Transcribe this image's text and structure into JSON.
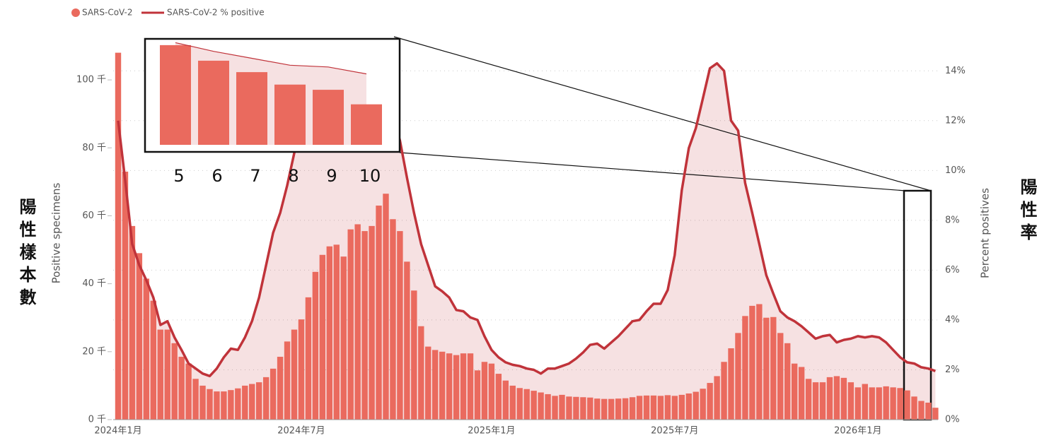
{
  "chart_data": {
    "type": "bar-line",
    "legend_position": "top-left",
    "y_title": "Positive specimens",
    "y2_title": "Percent positives",
    "y_note": "陽性樣本數",
    "y2_note": "陽性率",
    "categories": [
      "2024年1月",
      null,
      null,
      null,
      null,
      null,
      null,
      null,
      null,
      null,
      null,
      null,
      null,
      null,
      null,
      null,
      null,
      null,
      null,
      null,
      null,
      null,
      null,
      null,
      null,
      null,
      "2024年7月",
      null,
      null,
      null,
      null,
      null,
      null,
      null,
      null,
      null,
      null,
      null,
      null,
      null,
      null,
      null,
      null,
      null,
      null,
      null,
      null,
      null,
      null,
      null,
      null,
      null,
      null,
      "2025年1月",
      null,
      null,
      null,
      null,
      null,
      null,
      null,
      null,
      null,
      null,
      null,
      null,
      null,
      null,
      null,
      null,
      null,
      null,
      null,
      null,
      null,
      null,
      null,
      null,
      null,
      "2025年7月",
      null,
      null,
      null,
      null,
      null,
      null,
      null,
      null,
      null,
      null,
      null,
      null,
      null,
      null,
      null,
      null,
      null,
      null,
      null,
      null,
      null,
      null,
      null,
      null,
      null,
      "2026年1月",
      null,
      null,
      null,
      null,
      null,
      null,
      null,
      null,
      null,
      null,
      null
    ],
    "series": [
      {
        "name": "SARS-CoV-2",
        "color": "#ea6a5e",
        "values": [
          108,
          73,
          57,
          49,
          41.5,
          35,
          26.5,
          26.5,
          22.5,
          18.5,
          16.5,
          12,
          10,
          9,
          8.3,
          8.3,
          8.7,
          9.2,
          10,
          10.5,
          11,
          12.5,
          15,
          18.5,
          23,
          26.5,
          29.5,
          36,
          43.5,
          48.5,
          51,
          51.5,
          48,
          56,
          57.5,
          55.5,
          57,
          63,
          66.5,
          59,
          55.5,
          46.5,
          38,
          27.5,
          21.5,
          20.5,
          20,
          19.5,
          19,
          19.5,
          19.5,
          14.5,
          17,
          16.5,
          13.5,
          11.5,
          10,
          9.3,
          9,
          8.5,
          8,
          7.5,
          7,
          7.3,
          6.8,
          6.7,
          6.6,
          6.5,
          6.2,
          6.1,
          6.1,
          6.2,
          6.3,
          6.6,
          7,
          7.1,
          7.1,
          7,
          7.2,
          7,
          7.3,
          7.7,
          8.2,
          9.1,
          10.8,
          12.8,
          17,
          21,
          25.5,
          30.5,
          33.5,
          34,
          30,
          30.2,
          25.5,
          22.5,
          16.5,
          15.5,
          12,
          11,
          11,
          12.5,
          12.8,
          12.3,
          11,
          9.5,
          10.5,
          9.5,
          9.5,
          9.8,
          9.5,
          9.3,
          8.6,
          6.8,
          5.5,
          5,
          3.5
        ]
      },
      {
        "name": "SARS-CoV-2 % positive",
        "color": "#c0333a",
        "axis": "y2",
        "values": [
          12.0,
          9.6,
          7.05,
          6.2,
          5.6,
          4.9,
          3.8,
          3.95,
          3.3,
          2.8,
          2.25,
          2.05,
          1.85,
          1.75,
          2.05,
          2.5,
          2.85,
          2.8,
          3.3,
          3.95,
          4.9,
          6.2,
          7.5,
          8.3,
          9.4,
          10.7,
          11.6,
          12.6,
          13.4,
          13.8,
          14.1,
          14.3,
          14.2,
          14.1,
          14.0,
          13.7,
          13.4,
          13.1,
          12.7,
          12.2,
          11.2,
          9.7,
          8.3,
          7.05,
          6.2,
          5.35,
          5.15,
          4.9,
          4.4,
          4.35,
          4.1,
          4.0,
          3.35,
          2.8,
          2.5,
          2.3,
          2.2,
          2.15,
          2.05,
          2.0,
          1.85,
          2.05,
          2.05,
          2.15,
          2.25,
          2.45,
          2.7,
          3.0,
          3.05,
          2.85,
          3.1,
          3.35,
          3.65,
          3.95,
          4.0,
          4.35,
          4.65,
          4.65,
          5.2,
          6.6,
          9.2,
          10.9,
          11.7,
          12.9,
          14.1,
          14.3,
          14.0,
          12.0,
          11.6,
          9.5,
          8.3,
          7.05,
          5.8,
          5.05,
          4.35,
          4.1,
          3.95,
          3.75,
          3.5,
          3.25,
          3.35,
          3.4,
          3.1,
          3.2,
          3.25,
          3.35,
          3.3,
          3.35,
          3.3,
          3.1,
          2.8,
          2.5,
          2.3,
          2.25,
          2.1,
          2.05,
          1.95
        ]
      }
    ],
    "ylim": [
      0,
      110
    ],
    "yticks": [
      {
        "value": 0,
        "label": "0 千"
      },
      {
        "value": 20,
        "label": "20 千"
      },
      {
        "value": 40,
        "label": "40 千"
      },
      {
        "value": 60,
        "label": "60 千"
      },
      {
        "value": 80,
        "label": "80 千"
      },
      {
        "value": 100,
        "label": "100 千"
      }
    ],
    "y2lim": [
      0,
      15
    ],
    "y2ticks": [
      {
        "value": 0,
        "label": "0%"
      },
      {
        "value": 2,
        "label": "2%"
      },
      {
        "value": 4,
        "label": "4%"
      },
      {
        "value": 6,
        "label": "6%"
      },
      {
        "value": 8,
        "label": "8%"
      },
      {
        "value": 10,
        "label": "10%"
      },
      {
        "value": 12,
        "label": "12%"
      },
      {
        "value": 14,
        "label": "14%"
      }
    ],
    "grid": true,
    "inset": {
      "categories": [
        "5",
        "6",
        "7",
        "8",
        "9",
        "10"
      ],
      "values": [
        9.6,
        8.1,
        7.0,
        5.8,
        5.3,
        3.9
      ],
      "line_values": [
        2.95,
        2.7,
        2.5,
        2.3,
        2.25,
        2.05
      ],
      "ylim": [
        0,
        10
      ],
      "y2lim": [
        0,
        3
      ]
    }
  }
}
